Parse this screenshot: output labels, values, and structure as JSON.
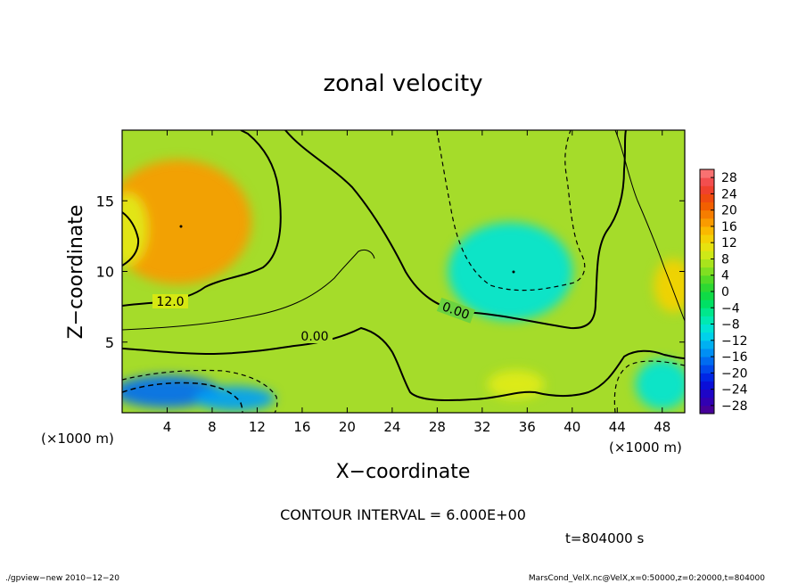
{
  "chart_data": {
    "type": "heatmap",
    "title": "zonal velocity",
    "xlabel": "X−coordinate",
    "ylabel": "Z−coordinate",
    "x_unit": "(×1000 m)",
    "z_unit": "(×1000 m)",
    "xlim": [
      0,
      50
    ],
    "ylim": [
      0,
      20
    ],
    "x_ticks": [
      4,
      8,
      12,
      16,
      20,
      24,
      28,
      32,
      36,
      40,
      44,
      48
    ],
    "x_tick_labels": [
      "4",
      "8",
      "12",
      "16",
      "20",
      "24",
      "28",
      "32",
      "36",
      "40",
      "44",
      "48"
    ],
    "y_ticks": [
      5,
      10,
      15
    ],
    "y_tick_labels": [
      "5",
      "10",
      "15"
    ],
    "colorbar": {
      "min": -30,
      "max": 30,
      "step": 4,
      "labels": [
        "28",
        "24",
        "20",
        "16",
        "12",
        "8",
        "4",
        "0",
        "−4",
        "−8",
        "−12",
        "−16",
        "−20",
        "−24",
        "−28"
      ],
      "label_values": [
        28,
        24,
        20,
        16,
        12,
        8,
        4,
        0,
        -4,
        -8,
        -12,
        -16,
        -20,
        -24,
        -28
      ]
    },
    "contour_labels": [
      "12.0",
      "0.00",
      "0.00"
    ],
    "contour_interval_text": "CONTOUR INTERVAL = 6.000E+00",
    "time_text": "t=804000 s",
    "features": [
      {
        "x": 5,
        "z": 13.5,
        "value": 17
      },
      {
        "x": 34.5,
        "z": 10,
        "value": -9
      },
      {
        "x": 4,
        "z": 1.5,
        "value": -17
      },
      {
        "x": 10,
        "z": 1,
        "value": -14
      },
      {
        "x": 49,
        "z": 9,
        "value": 13
      },
      {
        "x": 35,
        "z": 2,
        "value": 10
      },
      {
        "x": 48,
        "z": 2,
        "value": -9
      },
      {
        "x": 0.5,
        "z": 13,
        "value": 10
      }
    ]
  },
  "footer": {
    "left": "./gpview−new  2010−12−20",
    "right": "MarsCond_VelX.nc@VelX,x=0:50000,z=0:20000,t=804000"
  }
}
